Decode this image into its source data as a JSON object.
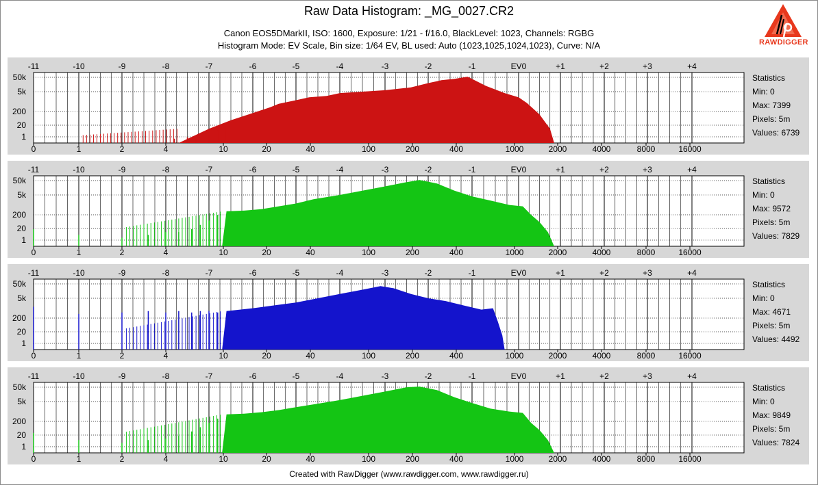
{
  "title": "Raw Data Histogram: _MG_0027.CR2",
  "subtitle_line1": "Canon EOS5DMarkII, ISO: 1600, Exposure: 1/21 - f/16.0, BlackLevel: 1023, Channels: RGBG",
  "subtitle_line2": "Histogram Mode: EV Scale, Bin size: 1/64 EV, BL used: Auto (1023,1025,1024,1023), Curve: N/A",
  "footer": "Created with RawDigger (www.rawdigger.com, www.rawdigger.ru)",
  "logo_text": "RAWDIGGER",
  "chart_data": {
    "type": "area",
    "top_axis_ticks": [
      "-11",
      "-10",
      "-9",
      "-8",
      "-7",
      "-6",
      "-5",
      "-4",
      "-3",
      "-2",
      "-1",
      "EV0",
      "+1",
      "+2",
      "+3",
      "+4"
    ],
    "bottom_axis_ticks": [
      "0",
      "1",
      "2",
      "4",
      "10",
      "20",
      "40",
      "100",
      "200",
      "400",
      "1000",
      "2000",
      "4000",
      "8000",
      "16000"
    ],
    "y_axis_ticks": [
      "50k",
      "5k",
      "200",
      "20",
      "1"
    ],
    "y_scale": "log",
    "grid": true,
    "panels": [
      {
        "color": "#cc1313",
        "stats": {
          "heading": "Statistics",
          "min": "Min: 0",
          "max": "Max: 7399",
          "pixels": "Pixels: 5m",
          "values": "Values: 6739"
        },
        "profile": [
          [
            3.3,
            0
          ],
          [
            4.0,
            1.0
          ],
          [
            4.5,
            1.6
          ],
          [
            5.0,
            2.1
          ],
          [
            5.4,
            2.5
          ],
          [
            5.6,
            2.75
          ],
          [
            6.0,
            3.0
          ],
          [
            6.3,
            3.2
          ],
          [
            6.7,
            3.3
          ],
          [
            7.0,
            3.5
          ],
          [
            7.5,
            3.6
          ],
          [
            8.0,
            3.7
          ],
          [
            8.6,
            3.9
          ],
          [
            9.0,
            4.2
          ],
          [
            9.3,
            4.4
          ],
          [
            9.6,
            4.5
          ],
          [
            9.9,
            4.65
          ],
          [
            10.3,
            4.0
          ],
          [
            10.7,
            3.5
          ],
          [
            11.0,
            3.2
          ],
          [
            11.2,
            2.8
          ],
          [
            11.5,
            2.0
          ],
          [
            11.75,
            1.0
          ],
          [
            11.85,
            0
          ]
        ],
        "spikes": [
          [
            3.2,
            0.3
          ],
          [
            3.5,
            0.4
          ],
          [
            3.7,
            0.3
          ],
          [
            4.0,
            0.6
          ],
          [
            4.2,
            0.9
          ],
          [
            4.4,
            1.2
          ]
        ]
      },
      {
        "color": "#14c514",
        "stats": {
          "heading": "Statistics",
          "min": "Min: 0",
          "max": "Max: 9572",
          "pixels": "Pixels: 5m",
          "values": "Values: 7829"
        },
        "profile": [
          [
            4.3,
            0
          ],
          [
            4.4,
            2.45
          ],
          [
            4.8,
            2.5
          ],
          [
            5.2,
            2.6
          ],
          [
            5.6,
            2.8
          ],
          [
            6.0,
            3.0
          ],
          [
            6.4,
            3.3
          ],
          [
            7.0,
            3.6
          ],
          [
            7.5,
            3.9
          ],
          [
            8.0,
            4.2
          ],
          [
            8.5,
            4.5
          ],
          [
            8.8,
            4.65
          ],
          [
            9.2,
            4.4
          ],
          [
            9.6,
            3.9
          ],
          [
            10.0,
            3.5
          ],
          [
            10.4,
            3.2
          ],
          [
            10.8,
            2.9
          ],
          [
            11.1,
            2.8
          ],
          [
            11.3,
            2.2
          ],
          [
            11.5,
            1.7
          ],
          [
            11.7,
            1.0
          ],
          [
            11.85,
            0
          ]
        ],
        "spikes": [
          [
            0.0,
            1.2
          ],
          [
            1.0,
            0.8
          ],
          [
            2.0,
            0.6
          ],
          [
            2.6,
            0.8
          ],
          [
            3.0,
            1.0
          ],
          [
            3.3,
            1.0
          ],
          [
            3.6,
            1.2
          ],
          [
            3.8,
            1.5
          ],
          [
            4.0,
            1.8
          ],
          [
            4.2,
            2.2
          ]
        ]
      },
      {
        "color": "#1414cc",
        "stats": {
          "heading": "Statistics",
          "min": "Min: 0",
          "max": "Max: 4671",
          "pixels": "Pixels: 5m",
          "values": "Values: 4492"
        },
        "profile": [
          [
            4.3,
            0
          ],
          [
            4.4,
            2.7
          ],
          [
            5.0,
            2.9
          ],
          [
            5.5,
            3.1
          ],
          [
            6.0,
            3.3
          ],
          [
            6.5,
            3.6
          ],
          [
            7.0,
            3.9
          ],
          [
            7.5,
            4.2
          ],
          [
            7.9,
            4.45
          ],
          [
            8.2,
            4.3
          ],
          [
            8.6,
            3.9
          ],
          [
            9.0,
            3.6
          ],
          [
            9.4,
            3.4
          ],
          [
            9.8,
            3.1
          ],
          [
            10.2,
            2.8
          ],
          [
            10.45,
            2.9
          ],
          [
            10.55,
            2.0
          ],
          [
            10.65,
            1.0
          ],
          [
            10.7,
            0
          ]
        ],
        "spikes": [
          [
            0.0,
            3.0
          ],
          [
            1.0,
            2.5
          ],
          [
            2.0,
            2.6
          ],
          [
            2.6,
            2.7
          ],
          [
            3.0,
            2.6
          ],
          [
            3.3,
            2.7
          ],
          [
            3.6,
            2.6
          ],
          [
            3.8,
            2.7
          ],
          [
            4.0,
            2.7
          ],
          [
            4.2,
            2.6
          ]
        ]
      },
      {
        "color": "#14c514",
        "stats": {
          "heading": "Statistics",
          "min": "Min: 0",
          "max": "Max: 9849",
          "pixels": "Pixels: 5m",
          "values": "Values: 7824"
        },
        "profile": [
          [
            4.3,
            0
          ],
          [
            4.4,
            2.7
          ],
          [
            4.8,
            2.75
          ],
          [
            5.2,
            2.85
          ],
          [
            5.6,
            3.0
          ],
          [
            6.0,
            3.2
          ],
          [
            6.5,
            3.45
          ],
          [
            7.0,
            3.7
          ],
          [
            7.5,
            4.0
          ],
          [
            8.0,
            4.3
          ],
          [
            8.5,
            4.6
          ],
          [
            8.8,
            4.65
          ],
          [
            9.2,
            4.4
          ],
          [
            9.6,
            3.9
          ],
          [
            10.0,
            3.5
          ],
          [
            10.4,
            3.1
          ],
          [
            10.8,
            2.9
          ],
          [
            11.1,
            2.8
          ],
          [
            11.3,
            2.1
          ],
          [
            11.5,
            1.6
          ],
          [
            11.7,
            0.9
          ],
          [
            11.85,
            0
          ]
        ],
        "spikes": [
          [
            0.0,
            1.4
          ],
          [
            1.0,
            0.9
          ],
          [
            2.0,
            0.7
          ],
          [
            2.6,
            0.9
          ],
          [
            3.0,
            1.0
          ],
          [
            3.3,
            1.2
          ],
          [
            3.6,
            1.5
          ],
          [
            3.8,
            1.8
          ],
          [
            4.0,
            2.1
          ],
          [
            4.2,
            2.4
          ]
        ]
      }
    ]
  }
}
